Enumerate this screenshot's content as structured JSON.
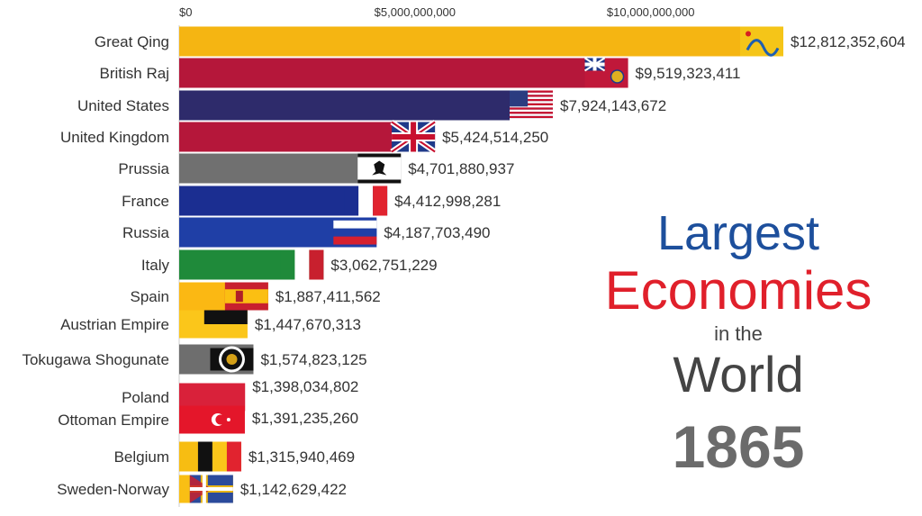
{
  "chart_data": {
    "type": "bar",
    "orientation": "horizontal",
    "x_ticks": [
      {
        "value": 0,
        "label": "$0"
      },
      {
        "value": 5000000000,
        "label": "$5,000,000,000"
      },
      {
        "value": 10000000000,
        "label": "$10,000,000,000"
      }
    ],
    "xlim": [
      0,
      12812352604
    ],
    "categories": [
      "Great Qing",
      "British Raj",
      "United States",
      "United Kingdom",
      "Prussia",
      "France",
      "Russia",
      "Italy",
      "Spain",
      "Austrian Empire",
      "Tokugawa Shogunate",
      "Poland",
      "Ottoman Empire",
      "Belgium",
      "Sweden-Norway"
    ],
    "values": [
      12812352604,
      9519323411,
      7924143672,
      5424514250,
      4701880937,
      4412998281,
      4187703490,
      3062751229,
      1887411562,
      1447670313,
      1574823125,
      1398034802,
      1391235260,
      1315940469,
      1142629422
    ],
    "value_labels": [
      "$12,812,352,604",
      "$9,519,323,411",
      "$7,924,143,672",
      "$5,424,514,250",
      "$4,701,880,937",
      "$4,412,998,281",
      "$4,187,703,490",
      "$3,062,751,229",
      "$1,887,411,562",
      "$1,447,670,313",
      "$1,574,823,125",
      "$1,398,034,802",
      "$1,391,235,260",
      "$1,315,940,469",
      "$1,142,629,422"
    ],
    "colors": [
      "#f5b512",
      "#b5173a",
      "#2e2b6b",
      "#b5173a",
      "#707070",
      "#1b2e91",
      "#1f3fa6",
      "#1f8a3a",
      "#fbb813",
      "#fbc61a",
      "#6e6e6e",
      "#d9213a",
      "#e4162a",
      "#f7bd12",
      "#f9bf14"
    ],
    "flags": [
      "qing-dragon",
      "british-raj",
      "united-states",
      "union-jack",
      "prussia",
      "france",
      "russia",
      "italy",
      "spain",
      "austria",
      "tokugawa",
      "none",
      "ottoman",
      "belgium",
      "sweden-norway"
    ],
    "grid": false,
    "legend": "none"
  },
  "title": {
    "line1": "Largest",
    "line2": "Economies",
    "line3": "in the",
    "line4": "World",
    "year": "1865"
  },
  "colors": {
    "title_blue": "#1d4f9c",
    "title_red": "#e0202b",
    "title_gray": "#444444",
    "year_gray": "#6b6b6b",
    "text": "#333333"
  }
}
